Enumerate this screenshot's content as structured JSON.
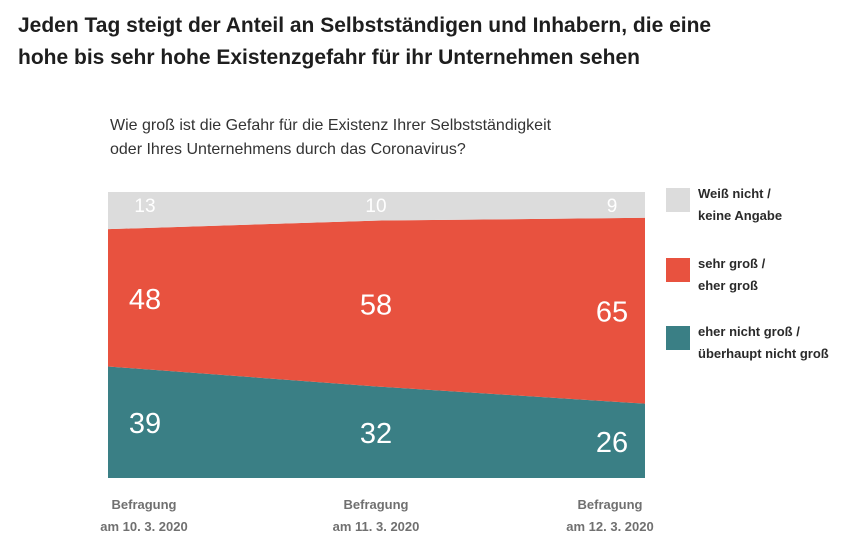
{
  "headline": {
    "line1": "Jeden Tag steigt der Anteil an Selbstständigen und Inhabern, die eine",
    "line2": "hohe bis sehr hohe Existenzgefahr für ihr Unternehmen sehen"
  },
  "chart_data": {
    "type": "area",
    "stacked": true,
    "title": "Jeden Tag steigt der Anteil an Selbstständigen und Inhabern, die eine hohe bis sehr hohe Existenzgefahr für ihr Unternehmen sehen",
    "subtitle": {
      "line1": "Wie groß ist die Gefahr für die Existenz Ihrer Selbstständigkeit",
      "line2": "oder Ihres Unternehmens durch das Coronavirus?"
    },
    "categories": [
      {
        "line1": "Befragung",
        "line2": "am 10. 3. 2020"
      },
      {
        "line1": "Befragung",
        "line2": "am 11. 3. 2020"
      },
      {
        "line1": "Befragung",
        "line2": "am 12. 3. 2020"
      }
    ],
    "ylim": [
      0,
      100
    ],
    "series": [
      {
        "name_line1": "eher nicht groß /",
        "name_line2": "überhaupt nicht groß",
        "values": [
          39,
          32,
          26
        ],
        "color": "#3a7f85"
      },
      {
        "name_line1": "sehr groß /",
        "name_line2": "eher groß",
        "values": [
          48,
          58,
          65
        ],
        "color": "#e8523f"
      },
      {
        "name_line1": "Weiß nicht /",
        "name_line2": "keine Angabe",
        "values": [
          13,
          10,
          9
        ],
        "color": "#dcdcdc"
      }
    ],
    "legend_position": "right"
  }
}
